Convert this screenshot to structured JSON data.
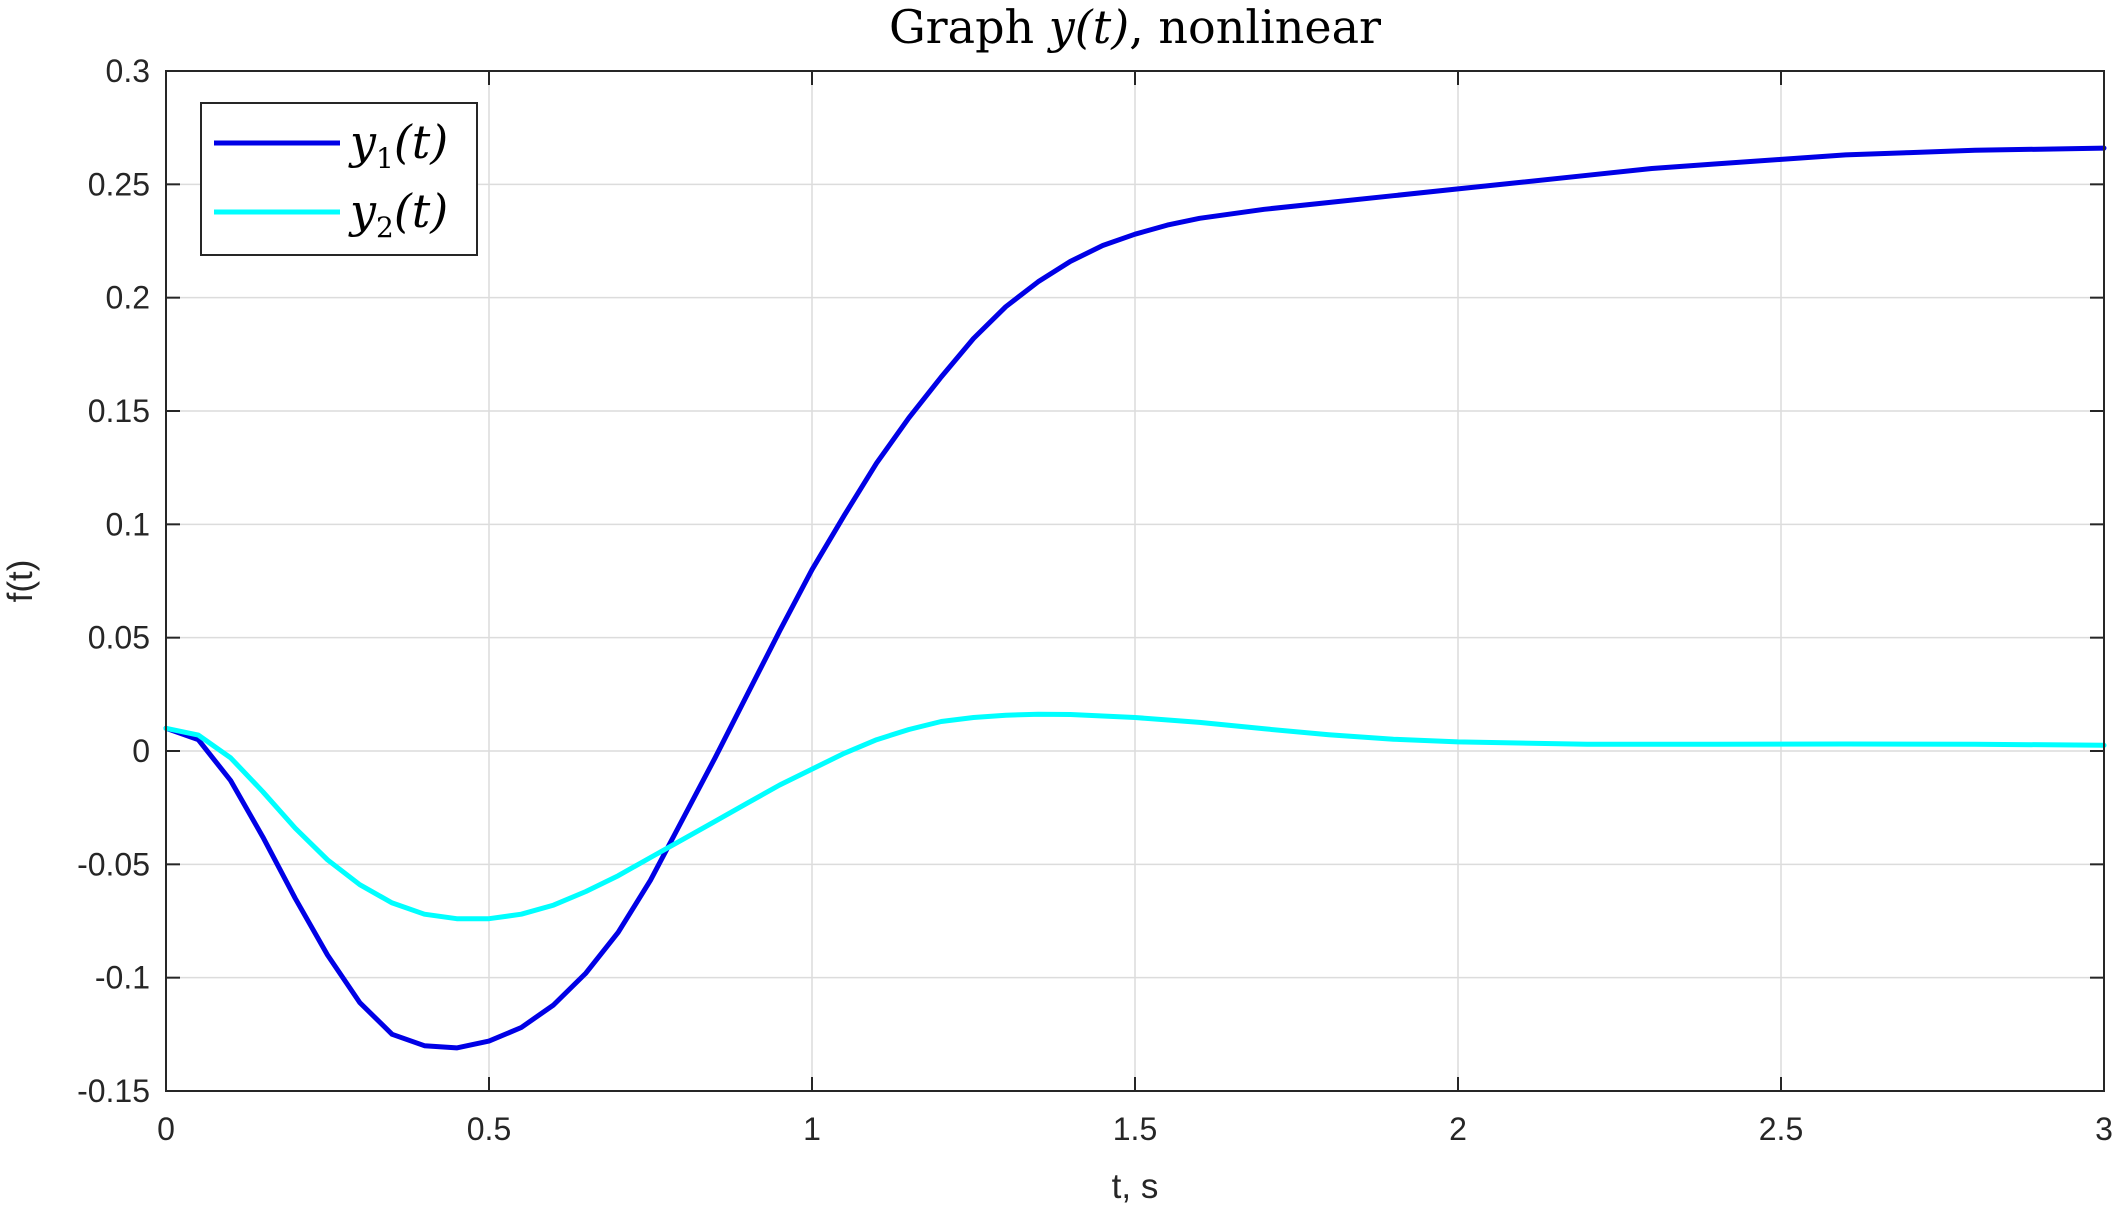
{
  "chart_data": {
    "type": "line",
    "title": "Graph y(t), nonlinear",
    "title_parts": {
      "prefix": "Graph ",
      "math": "y(t)",
      "suffix": ", nonlinear"
    },
    "xlabel": "t, s",
    "ylabel": "f(t)",
    "xlim": [
      0,
      3
    ],
    "ylim": [
      -0.15,
      0.3
    ],
    "xticks": [
      0,
      0.5,
      1,
      1.5,
      2,
      2.5,
      3
    ],
    "xtick_labels": [
      "0",
      "0.5",
      "1",
      "1.5",
      "2",
      "2.5",
      "3"
    ],
    "yticks": [
      -0.15,
      -0.1,
      -0.05,
      0,
      0.05,
      0.1,
      0.15,
      0.2,
      0.25,
      0.3
    ],
    "ytick_labels": [
      "-0.15",
      "-0.1",
      "-0.05",
      "0",
      "0.05",
      "0.1",
      "0.15",
      "0.2",
      "0.25",
      "0.3"
    ],
    "grid": true,
    "legend_position": "top-left",
    "series": [
      {
        "name": "y1(t)",
        "legend_base": "y",
        "legend_sub": "1",
        "legend_tail": "(t)",
        "color": "#0000e6",
        "x": [
          0,
          0.05,
          0.1,
          0.15,
          0.2,
          0.25,
          0.3,
          0.35,
          0.4,
          0.45,
          0.5,
          0.55,
          0.6,
          0.65,
          0.7,
          0.75,
          0.8,
          0.85,
          0.9,
          0.95,
          1.0,
          1.05,
          1.1,
          1.15,
          1.2,
          1.25,
          1.3,
          1.35,
          1.4,
          1.45,
          1.5,
          1.55,
          1.6,
          1.7,
          1.8,
          1.9,
          2.0,
          2.1,
          2.2,
          2.3,
          2.4,
          2.5,
          2.6,
          2.7,
          2.8,
          2.9,
          3.0
        ],
        "y": [
          0.01,
          0.005,
          -0.013,
          -0.038,
          -0.065,
          -0.09,
          -0.111,
          -0.125,
          -0.13,
          -0.131,
          -0.128,
          -0.122,
          -0.112,
          -0.098,
          -0.08,
          -0.057,
          -0.03,
          -0.003,
          0.025,
          0.053,
          0.08,
          0.104,
          0.127,
          0.147,
          0.165,
          0.182,
          0.196,
          0.207,
          0.216,
          0.223,
          0.228,
          0.232,
          0.235,
          0.239,
          0.242,
          0.245,
          0.248,
          0.251,
          0.254,
          0.257,
          0.259,
          0.261,
          0.263,
          0.264,
          0.265,
          0.2655,
          0.266
        ]
      },
      {
        "name": "y2(t)",
        "legend_base": "y",
        "legend_sub": "2",
        "legend_tail": "(t)",
        "color": "#00ffff",
        "x": [
          0,
          0.05,
          0.1,
          0.15,
          0.2,
          0.25,
          0.3,
          0.35,
          0.4,
          0.45,
          0.5,
          0.55,
          0.6,
          0.65,
          0.7,
          0.75,
          0.8,
          0.85,
          0.9,
          0.95,
          1.0,
          1.05,
          1.1,
          1.15,
          1.2,
          1.25,
          1.3,
          1.35,
          1.4,
          1.5,
          1.6,
          1.7,
          1.8,
          1.9,
          2.0,
          2.2,
          2.4,
          2.6,
          2.8,
          3.0
        ],
        "y": [
          0.01,
          0.007,
          -0.003,
          -0.018,
          -0.034,
          -0.048,
          -0.059,
          -0.067,
          -0.072,
          -0.074,
          -0.074,
          -0.072,
          -0.068,
          -0.062,
          -0.055,
          -0.047,
          -0.039,
          -0.031,
          -0.023,
          -0.015,
          -0.008,
          -0.001,
          0.005,
          0.0095,
          0.013,
          0.0148,
          0.0158,
          0.0162,
          0.0161,
          0.0148,
          0.0126,
          0.0098,
          0.0072,
          0.0052,
          0.004,
          0.003,
          0.003,
          0.0031,
          0.003,
          0.0025
        ]
      }
    ]
  }
}
